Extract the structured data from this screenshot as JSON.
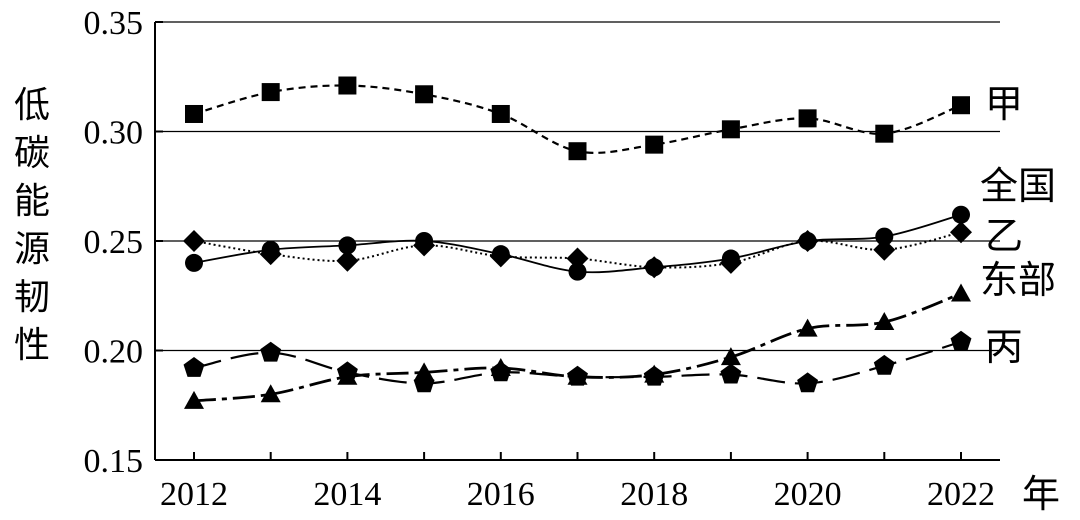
{
  "chart_data": {
    "type": "line",
    "title": "",
    "ylabel": "低碳能源韧性",
    "xlabel": "年",
    "ylim": [
      0.15,
      0.35
    ],
    "yticks": [
      "0.15",
      "0.20",
      "0.25",
      "0.30",
      "0.35"
    ],
    "xticks": [
      "2012",
      "2014",
      "2016",
      "2018",
      "2020",
      "2022"
    ],
    "x": [
      2012,
      2013,
      2014,
      2015,
      2016,
      2017,
      2018,
      2019,
      2020,
      2021,
      2022
    ],
    "grid": "horizontal",
    "legend": "right, labels at line ends",
    "series": [
      {
        "name": "甲",
        "marker": "square",
        "line": "dashed",
        "values": [
          0.308,
          0.318,
          0.321,
          0.317,
          0.308,
          0.291,
          0.294,
          0.301,
          0.306,
          0.299,
          0.312
        ]
      },
      {
        "name": "全国",
        "marker": "circle",
        "line": "solid",
        "values": [
          0.24,
          0.246,
          0.248,
          0.25,
          0.244,
          0.236,
          0.238,
          0.242,
          0.25,
          0.252,
          0.262
        ]
      },
      {
        "name": "乙",
        "marker": "diamond",
        "line": "dotted",
        "values": [
          0.25,
          0.244,
          0.241,
          0.248,
          0.243,
          0.242,
          0.238,
          0.24,
          0.25,
          0.246,
          0.254
        ]
      },
      {
        "name": "东部",
        "marker": "triangle",
        "line": "dashdot",
        "values": [
          0.177,
          0.18,
          0.188,
          0.19,
          0.192,
          0.188,
          0.189,
          0.197,
          0.21,
          0.213,
          0.226
        ]
      },
      {
        "name": "丙",
        "marker": "pentagon",
        "line": "longdash",
        "values": [
          0.192,
          0.199,
          0.19,
          0.185,
          0.19,
          0.188,
          0.188,
          0.189,
          0.185,
          0.193,
          0.204
        ]
      }
    ]
  }
}
